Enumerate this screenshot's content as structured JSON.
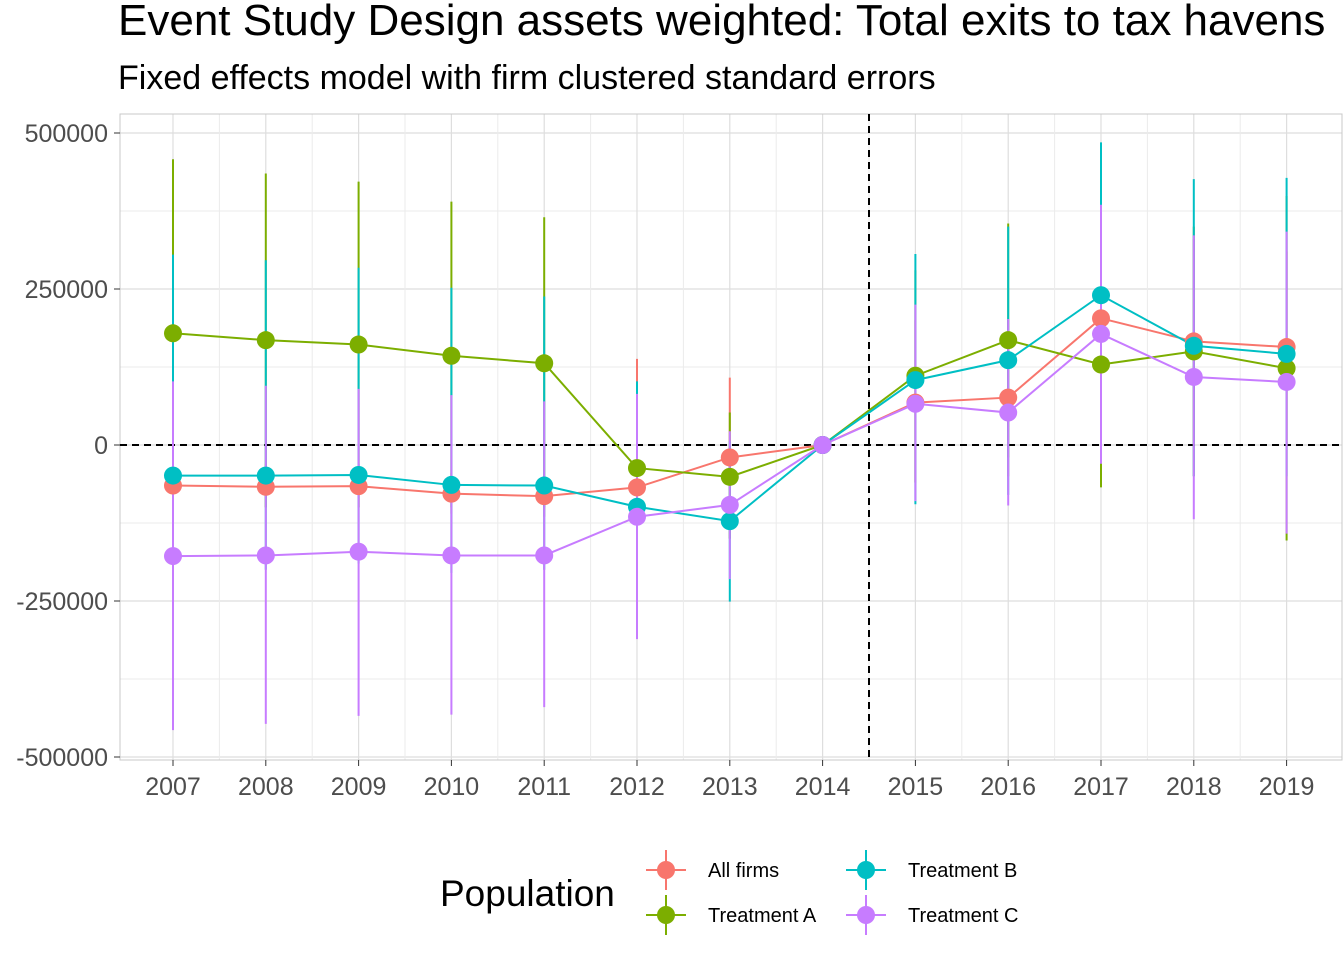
{
  "chart_data": {
    "type": "line",
    "title": "Event Study Design assets weighted: Total exits to tax havens",
    "subtitle": "Fixed effects model with firm clustered standard errors",
    "xlabel": "",
    "ylabel": "",
    "x": [
      "2007",
      "2008",
      "2009",
      "2010",
      "2011",
      "2012",
      "2013",
      "2014",
      "2015",
      "2016",
      "2017",
      "2018",
      "2019"
    ],
    "y_ticks": [
      500000,
      250000,
      0,
      -250000,
      -500000
    ],
    "y_tick_labels": [
      "500000",
      "250000",
      "0",
      "-250000",
      "-500000"
    ],
    "ylim": [
      -510000,
      530000
    ],
    "reference_lines": {
      "horizontal": 0,
      "vertical_between": [
        "2014",
        "2015"
      ]
    },
    "grid": true,
    "legend": {
      "title": "Population",
      "position": "bottom"
    },
    "series": [
      {
        "name": "All firms",
        "color": "#F8766D",
        "values": [
          -65000,
          -67000,
          -66000,
          -78000,
          -82000,
          -68000,
          -20000,
          0,
          68000,
          76000,
          203000,
          166000,
          157000
        ],
        "ci_low": [
          -100000,
          -100000,
          -100000,
          -110000,
          -115000,
          -250000,
          -150000,
          0,
          -60000,
          -50000,
          50000,
          0,
          0
        ],
        "ci_high": [
          -30000,
          -30000,
          -30000,
          -45000,
          -50000,
          138000,
          108000,
          0,
          200000,
          200000,
          360000,
          330000,
          310000
        ]
      },
      {
        "name": "Treatment A",
        "color": "#7CAE00",
        "values": [
          179000,
          168000,
          161000,
          143000,
          131000,
          -37000,
          -51000,
          0,
          111000,
          168000,
          129000,
          150000,
          123000
        ],
        "ci_low": [
          -100000,
          -100000,
          -100000,
          -100000,
          -100000,
          -150000,
          -150000,
          0,
          -60000,
          -20000,
          -68000,
          -50000,
          -153000
        ],
        "ci_high": [
          458000,
          435000,
          422000,
          390000,
          365000,
          80000,
          52000,
          0,
          280000,
          355000,
          326000,
          350000,
          399000
        ]
      },
      {
        "name": "Treatment B",
        "color": "#00BFC4",
        "values": [
          -49000,
          -49000,
          -48000,
          -64000,
          -65000,
          -99000,
          -122000,
          0,
          104000,
          136000,
          240000,
          159000,
          146000
        ],
        "ci_low": [
          -200000,
          -200000,
          -190000,
          -205000,
          -200000,
          -250000,
          -251000,
          0,
          -95000,
          -80000,
          0,
          -50000,
          -50000
        ],
        "ci_high": [
          305000,
          296000,
          284000,
          252000,
          238000,
          102000,
          6000,
          0,
          306000,
          350000,
          485000,
          426000,
          428000
        ]
      },
      {
        "name": "Treatment C",
        "color": "#C77CFF",
        "values": [
          -178000,
          -177000,
          -171000,
          -177000,
          -177000,
          -115000,
          -96000,
          0,
          66000,
          52000,
          178000,
          109000,
          101000
        ],
        "ci_low": [
          -457000,
          -447000,
          -434000,
          -432000,
          -420000,
          -311000,
          -215000,
          0,
          -90000,
          -97000,
          -30000,
          -119000,
          -142000
        ],
        "ci_high": [
          102000,
          95000,
          90000,
          80000,
          70000,
          82000,
          22000,
          0,
          225000,
          202000,
          385000,
          336000,
          342000
        ]
      }
    ]
  }
}
